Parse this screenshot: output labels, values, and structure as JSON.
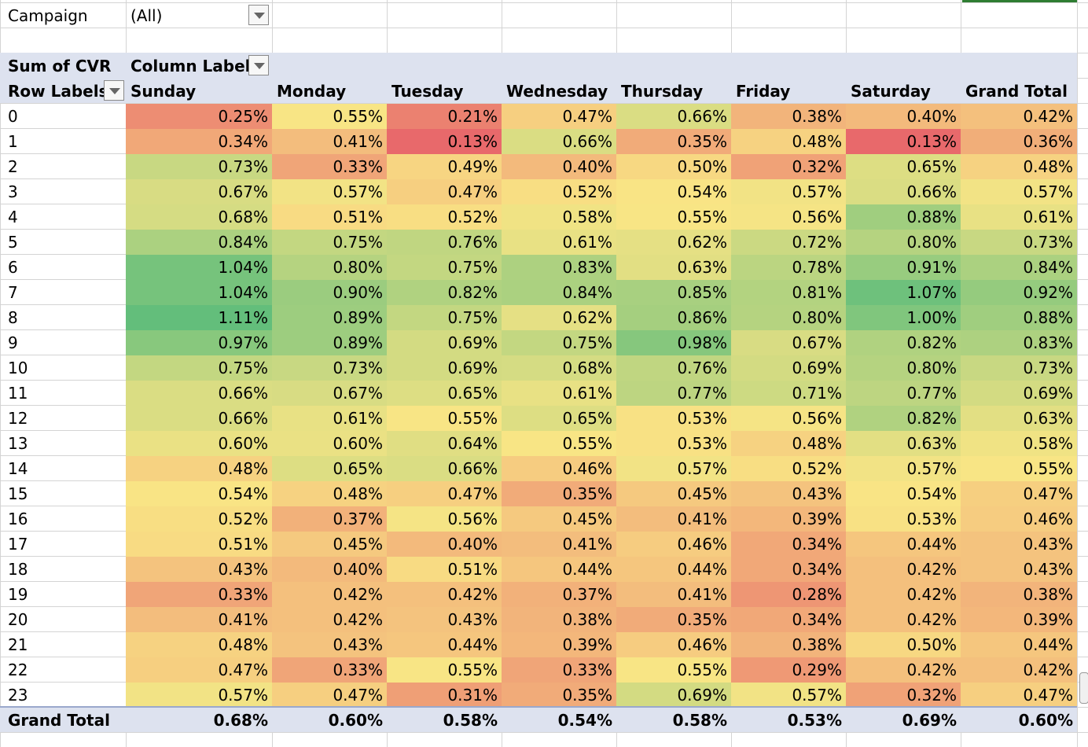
{
  "filter": {
    "label": "Campaign",
    "value": "(All)"
  },
  "pivot": {
    "values_label": "Sum of CVR",
    "column_labels": "Column Labels",
    "row_labels": "Row Labels",
    "columns": [
      "Sunday",
      "Monday",
      "Tuesday",
      "Wednesday",
      "Thursday",
      "Friday",
      "Saturday",
      "Grand Total"
    ],
    "rows": [
      {
        "label": "0",
        "values": [
          "0.25%",
          "0.55%",
          "0.21%",
          "0.47%",
          "0.66%",
          "0.38%",
          "0.40%",
          "0.42%"
        ]
      },
      {
        "label": "1",
        "values": [
          "0.34%",
          "0.41%",
          "0.13%",
          "0.66%",
          "0.35%",
          "0.48%",
          "0.13%",
          "0.36%"
        ]
      },
      {
        "label": "2",
        "values": [
          "0.73%",
          "0.33%",
          "0.49%",
          "0.40%",
          "0.50%",
          "0.32%",
          "0.65%",
          "0.48%"
        ]
      },
      {
        "label": "3",
        "values": [
          "0.67%",
          "0.57%",
          "0.47%",
          "0.52%",
          "0.54%",
          "0.57%",
          "0.66%",
          "0.57%"
        ]
      },
      {
        "label": "4",
        "values": [
          "0.68%",
          "0.51%",
          "0.52%",
          "0.58%",
          "0.55%",
          "0.56%",
          "0.88%",
          "0.61%"
        ]
      },
      {
        "label": "5",
        "values": [
          "0.84%",
          "0.75%",
          "0.76%",
          "0.61%",
          "0.62%",
          "0.72%",
          "0.80%",
          "0.73%"
        ]
      },
      {
        "label": "6",
        "values": [
          "1.04%",
          "0.80%",
          "0.75%",
          "0.83%",
          "0.63%",
          "0.78%",
          "0.91%",
          "0.84%"
        ]
      },
      {
        "label": "7",
        "values": [
          "1.04%",
          "0.90%",
          "0.82%",
          "0.84%",
          "0.85%",
          "0.81%",
          "1.07%",
          "0.92%"
        ]
      },
      {
        "label": "8",
        "values": [
          "1.11%",
          "0.89%",
          "0.75%",
          "0.62%",
          "0.86%",
          "0.80%",
          "1.00%",
          "0.88%"
        ]
      },
      {
        "label": "9",
        "values": [
          "0.97%",
          "0.89%",
          "0.69%",
          "0.75%",
          "0.98%",
          "0.67%",
          "0.82%",
          "0.83%"
        ]
      },
      {
        "label": "10",
        "values": [
          "0.75%",
          "0.73%",
          "0.69%",
          "0.68%",
          "0.76%",
          "0.69%",
          "0.80%",
          "0.73%"
        ]
      },
      {
        "label": "11",
        "values": [
          "0.66%",
          "0.67%",
          "0.65%",
          "0.61%",
          "0.77%",
          "0.71%",
          "0.77%",
          "0.69%"
        ]
      },
      {
        "label": "12",
        "values": [
          "0.66%",
          "0.61%",
          "0.55%",
          "0.65%",
          "0.53%",
          "0.56%",
          "0.82%",
          "0.63%"
        ]
      },
      {
        "label": "13",
        "values": [
          "0.60%",
          "0.60%",
          "0.64%",
          "0.55%",
          "0.53%",
          "0.48%",
          "0.63%",
          "0.58%"
        ]
      },
      {
        "label": "14",
        "values": [
          "0.48%",
          "0.65%",
          "0.66%",
          "0.46%",
          "0.57%",
          "0.52%",
          "0.57%",
          "0.55%"
        ]
      },
      {
        "label": "15",
        "values": [
          "0.54%",
          "0.48%",
          "0.47%",
          "0.35%",
          "0.45%",
          "0.43%",
          "0.54%",
          "0.47%"
        ]
      },
      {
        "label": "16",
        "values": [
          "0.52%",
          "0.37%",
          "0.56%",
          "0.45%",
          "0.41%",
          "0.39%",
          "0.53%",
          "0.46%"
        ]
      },
      {
        "label": "17",
        "values": [
          "0.51%",
          "0.45%",
          "0.40%",
          "0.41%",
          "0.46%",
          "0.34%",
          "0.44%",
          "0.43%"
        ]
      },
      {
        "label": "18",
        "values": [
          "0.43%",
          "0.40%",
          "0.51%",
          "0.44%",
          "0.44%",
          "0.34%",
          "0.42%",
          "0.43%"
        ]
      },
      {
        "label": "19",
        "values": [
          "0.33%",
          "0.42%",
          "0.42%",
          "0.37%",
          "0.41%",
          "0.28%",
          "0.42%",
          "0.38%"
        ]
      },
      {
        "label": "20",
        "values": [
          "0.41%",
          "0.42%",
          "0.43%",
          "0.38%",
          "0.35%",
          "0.34%",
          "0.42%",
          "0.39%"
        ]
      },
      {
        "label": "21",
        "values": [
          "0.48%",
          "0.43%",
          "0.44%",
          "0.39%",
          "0.46%",
          "0.38%",
          "0.50%",
          "0.44%"
        ]
      },
      {
        "label": "22",
        "values": [
          "0.47%",
          "0.33%",
          "0.55%",
          "0.33%",
          "0.55%",
          "0.29%",
          "0.42%",
          "0.42%"
        ]
      },
      {
        "label": "23",
        "values": [
          "0.57%",
          "0.47%",
          "0.31%",
          "0.35%",
          "0.69%",
          "0.57%",
          "0.32%",
          "0.47%"
        ]
      }
    ],
    "grand_total": {
      "label": "Grand Total",
      "values": [
        "0.68%",
        "0.60%",
        "0.58%",
        "0.54%",
        "0.58%",
        "0.53%",
        "0.69%",
        "0.60%"
      ]
    }
  },
  "color_scale": {
    "low": "#e8696b",
    "mid": "#f9e585",
    "high": "#63be7b"
  }
}
